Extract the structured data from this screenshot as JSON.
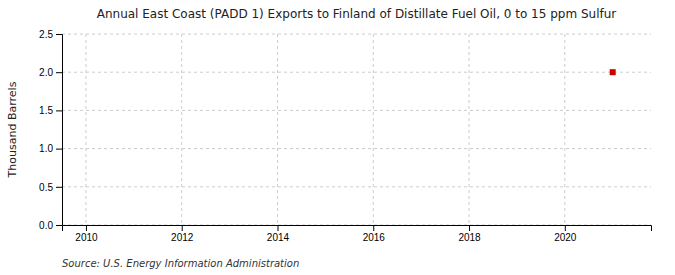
{
  "chart_data": {
    "type": "scatter",
    "title": "Annual East Coast (PADD 1) Exports to Finland of Distillate Fuel Oil, 0 to 15 ppm Sulfur",
    "y_label": "Thousand Barrels",
    "source": "Source: U.S. Energy Information Administration",
    "x": [
      2021
    ],
    "values": [
      2.0
    ],
    "color": "#cc0000",
    "marker": "square",
    "xlim": [
      2009.5,
      2021.8
    ],
    "xticks": [
      2010,
      2012,
      2014,
      2016,
      2018,
      2020
    ],
    "ylim": [
      0,
      2.5
    ],
    "yticks": [
      {
        "value": 0,
        "label": "0.0"
      },
      0.5,
      {
        "value": 1,
        "label": "1.0"
      },
      1.5,
      {
        "value": 2,
        "label": "2.0"
      },
      2.5
    ],
    "grid": true
  }
}
